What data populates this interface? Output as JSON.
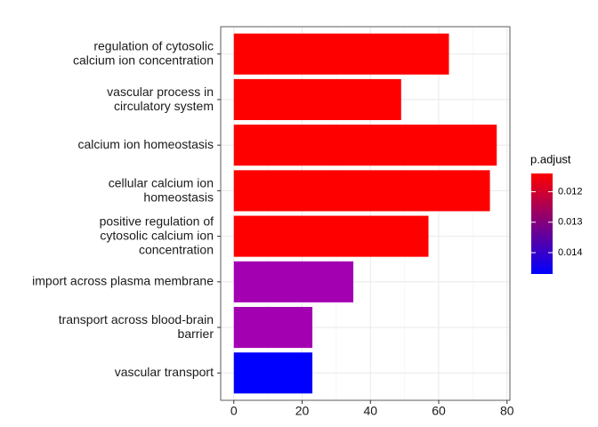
{
  "chart_data": {
    "type": "barh",
    "categories": [
      "regulation of cytosolic\ncalcium ion concentration",
      "vascular process in\ncirculatory system",
      "calcium ion homeostasis",
      "cellular calcium ion\nhomeostasis",
      "positive regulation of\ncytosolic calcium ion\nconcentration",
      "import across plasma membrane",
      "transport across blood-brain\nbarrier",
      "vascular transport"
    ],
    "values": [
      63,
      49,
      77,
      75,
      57,
      35,
      23,
      23
    ],
    "colors": [
      "#ff0000",
      "#ff0000",
      "#ff0000",
      "#ff0000",
      "#ff0000",
      "#a300b2",
      "#a300b2",
      "#0000ff"
    ],
    "xlim": [
      -3.85,
      80.85
    ],
    "xticks": [
      0,
      20,
      40,
      60,
      80
    ],
    "grid": true,
    "colorbar": {
      "title": "p.adjust",
      "lim": [
        0.0114,
        0.0147
      ],
      "ticks": [
        0.012,
        0.013,
        0.014
      ],
      "low_color": "#ff0000",
      "high_color": "#0000ff"
    }
  }
}
